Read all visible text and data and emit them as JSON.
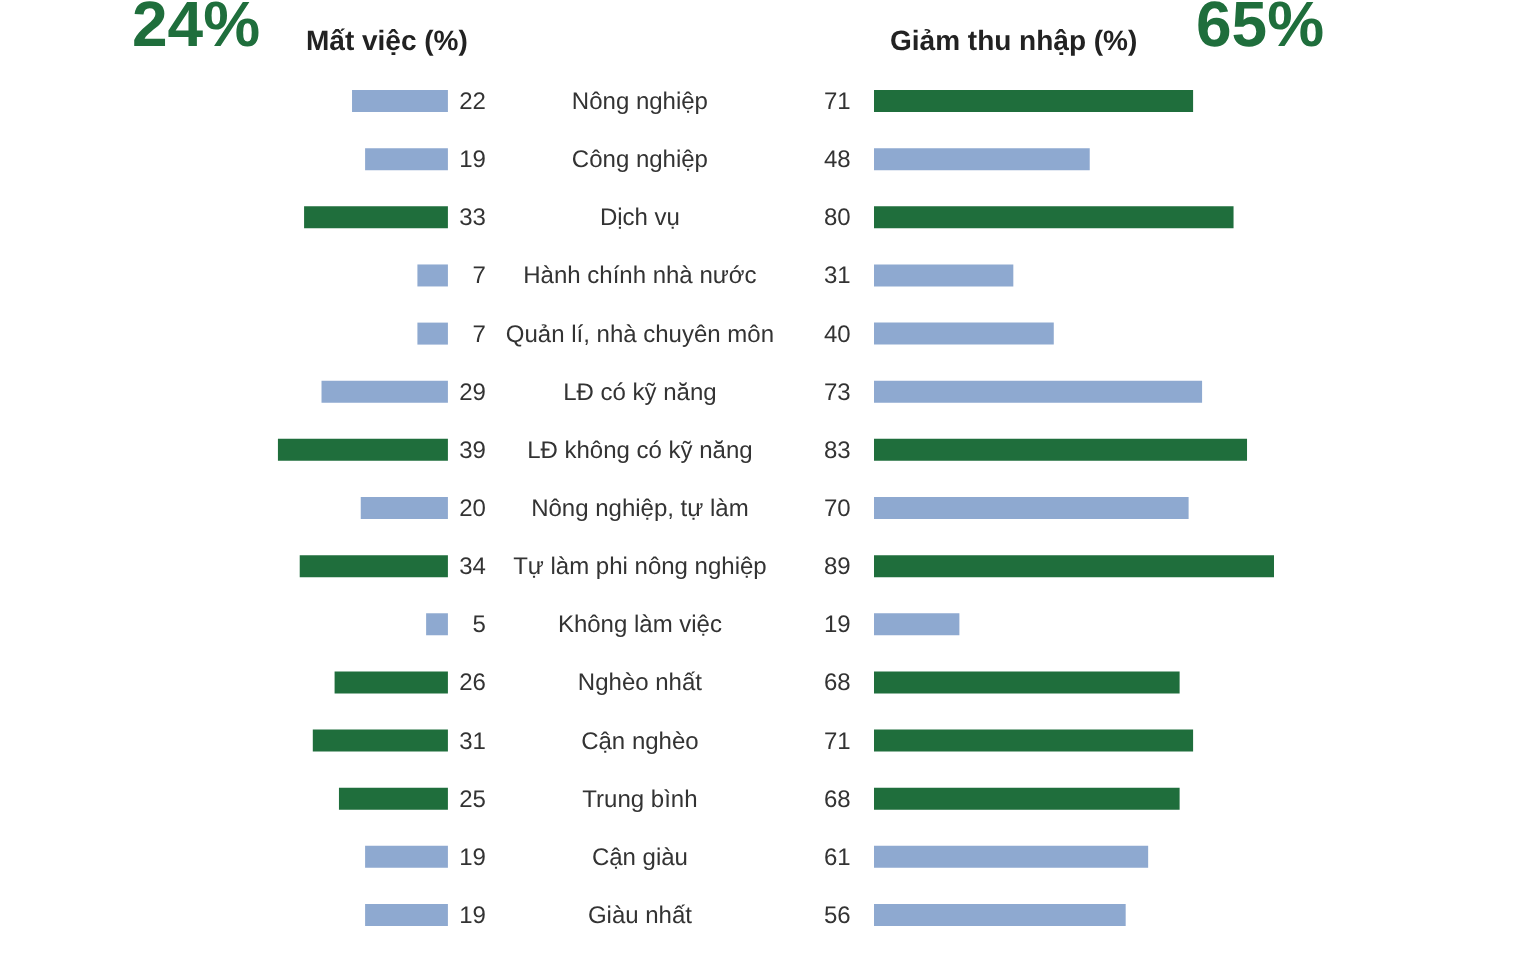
{
  "chart_data": [
    {
      "type": "bar",
      "orientation": "horizontal",
      "title": "Mất việc (%)",
      "annotations": [
        "24%"
      ],
      "tick_labels": "y",
      "data_labels": true,
      "categories": [
        "Nông nghiệp",
        "Công nghiệp",
        "Dịch vụ",
        "Hành chính nhà nước",
        "Quản lí, nhà chuyên môn",
        "LĐ có kỹ năng",
        "LĐ không có kỹ năng",
        "Nông nghiệp, tự làm",
        "Tự làm phi nông nghiệp",
        "Không làm việc",
        "Nghèo nhất",
        "Cận nghèo",
        "Trung bình",
        "Cận giàu",
        "Giàu nhất"
      ],
      "values": [
        22,
        19,
        33,
        7,
        7,
        29,
        39,
        20,
        34,
        5,
        26,
        31,
        25,
        19,
        19
      ],
      "colors": [
        "#8ea9d0",
        "#8ea9d0",
        "#1f6e3c",
        "#8ea9d0",
        "#8ea9d0",
        "#8ea9d0",
        "#1f6e3c",
        "#8ea9d0",
        "#1f6e3c",
        "#8ea9d0",
        "#1f6e3c",
        "#1f6e3c",
        "#1f6e3c",
        "#8ea9d0",
        "#8ea9d0"
      ]
    },
    {
      "type": "bar",
      "orientation": "horizontal",
      "title": "Giảm thu nhập (%)",
      "annotations": [
        "65%"
      ],
      "tick_labels": false,
      "data_labels": true,
      "values": [
        71,
        48,
        80,
        31,
        40,
        73,
        83,
        70,
        89,
        19,
        68,
        71,
        68,
        61,
        56
      ],
      "colors": [
        "#1f6e3c",
        "#8ea9d0",
        "#1f6e3c",
        "#8ea9d0",
        "#8ea9d0",
        "#8ea9d0",
        "#1f6e3c",
        "#8ea9d0",
        "#1f6e3c",
        "#8ea9d0",
        "#1f6e3c",
        "#1f6e3c",
        "#1f6e3c",
        "#8ea9d0",
        "#8ea9d0"
      ]
    }
  ]
}
